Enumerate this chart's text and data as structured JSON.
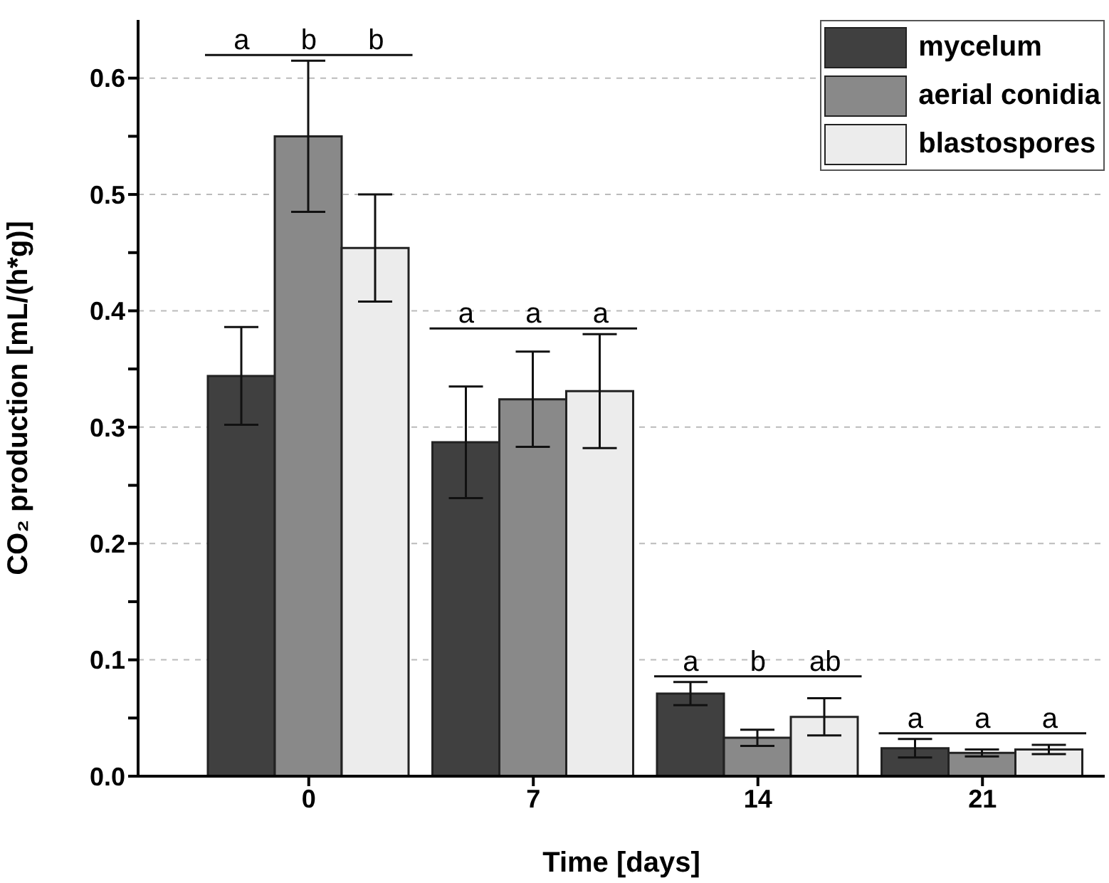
{
  "chart_data": {
    "type": "bar",
    "xlabel": "Time [days]",
    "ylabel": "CO₂ production [mL/(h*g)]",
    "categories": [
      "0",
      "7",
      "14",
      "21"
    ],
    "series": [
      {
        "name": "mycelum",
        "color": "#404040",
        "values": [
          0.344,
          0.287,
          0.071,
          0.024
        ],
        "errors": [
          0.042,
          0.048,
          0.01,
          0.008
        ]
      },
      {
        "name": "aerial conidia",
        "color": "#898989",
        "values": [
          0.55,
          0.324,
          0.033,
          0.02
        ],
        "errors": [
          0.065,
          0.041,
          0.007,
          0.003
        ]
      },
      {
        "name": "blastospores",
        "color": "#ececec",
        "values": [
          0.454,
          0.331,
          0.051,
          0.023
        ],
        "errors": [
          0.046,
          0.049,
          0.016,
          0.004
        ]
      }
    ],
    "ylim": [
      0,
      0.65
    ],
    "yticks": [
      {
        "value": 0,
        "label": "0.0"
      },
      {
        "value": 0.05,
        "label": null
      },
      {
        "value": 0.1,
        "label": "0.1"
      },
      {
        "value": 0.15,
        "label": null
      },
      {
        "value": 0.2,
        "label": "0.2"
      },
      {
        "value": 0.25,
        "label": null
      },
      {
        "value": 0.3,
        "label": "0.3"
      },
      {
        "value": 0.35,
        "label": null
      },
      {
        "value": 0.4,
        "label": "0.4"
      },
      {
        "value": 0.45,
        "label": null
      },
      {
        "value": 0.5,
        "label": "0.5"
      },
      {
        "value": 0.55,
        "label": null
      },
      {
        "value": 0.6,
        "label": "0.6"
      }
    ],
    "grid": "y",
    "legend": "top right",
    "annotations": [
      "a",
      "b",
      "b",
      "a",
      "a",
      "a",
      "a",
      "b",
      "ab",
      "a",
      "a",
      "a"
    ]
  }
}
